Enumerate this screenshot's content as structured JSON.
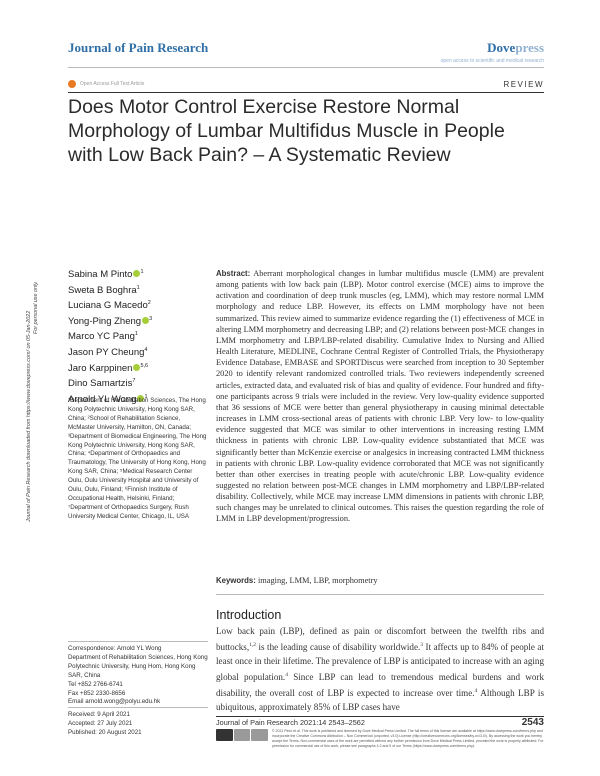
{
  "header": {
    "journal": "Journal of Pain Research",
    "brand_main": "Dove",
    "brand_light": "press",
    "brand_tagline": "open access to scientific and medical research",
    "open_access": "Open Access Full Text Article",
    "article_type": "REVIEW"
  },
  "title": "Does Motor Control Exercise Restore Normal Morphology of Lumbar Multifidus Muscle in People with Low Back Pain? – A Systematic Review",
  "side_text": {
    "line1": "Journal of Pain Research downloaded from https://www.dovepress.com/ on 05-Jan-2022",
    "line2": "For personal use only."
  },
  "authors": [
    {
      "name": "Sabina M Pinto",
      "sup": "1",
      "orcid": true
    },
    {
      "name": "Sweta B Boghra",
      "sup": "1",
      "orcid": false
    },
    {
      "name": "Luciana G Macedo",
      "sup": "2",
      "orcid": false
    },
    {
      "name": "Yong-Ping Zheng",
      "sup": "3",
      "orcid": true
    },
    {
      "name": "Marco YC Pang",
      "sup": "1",
      "orcid": false
    },
    {
      "name": "Jason PY Cheung",
      "sup": "4",
      "orcid": false
    },
    {
      "name": "Jaro Karppinen",
      "sup": "5,6",
      "orcid": true
    },
    {
      "name": "Dino Samartzis",
      "sup": "7",
      "orcid": false
    },
    {
      "name": "Arnold YL Wong",
      "sup": "1",
      "orcid": true
    }
  ],
  "affiliations": "¹Department of Rehabilitation Sciences, The Hong Kong Polytechnic University, Hong Kong SAR, China; ²School of Rehabilitation Science, McMaster University, Hamilton, ON, Canada; ³Department of Biomedical Engineering, The Hong Kong Polytechnic University, Hong Kong SAR, China; ⁴Department of Orthopaedics and Traumatology, The University of Hong Kong, Hong Kong SAR, China; ⁵Medical Research Center Oulu, Oulu University Hospital and University of Oulu, Oulu, Finland; ⁶Finnish Institute of Occupational Health, Helsinki, Finland; ⁷Department of Orthopaedics Surgery, Rush University Medical Center, Chicago, IL, USA",
  "correspondence": [
    "Correspondence: Arnold YL Wong",
    "Department of Rehabilitation Sciences, Hong Kong Polytechnic University, Hung Hom, Hong Kong SAR, China",
    "Tel +852 2766-6741",
    "Fax +852 2330-8656",
    "Email arnold.wong@polyu.edu.hk"
  ],
  "dates": [
    "Received: 9 April 2021",
    "Accepted: 27 July 2021",
    "Published: 20 August 2021"
  ],
  "abstract": {
    "label": "Abstract:",
    "text": "Aberrant morphological changes in lumbar multifidus muscle (LMM) are prevalent among patients with low back pain (LBP). Motor control exercise (MCE) aims to improve the activation and coordination of deep trunk muscles (eg, LMM), which may restore normal LMM morphology and reduce LBP. However, its effects on LMM morphology have not been summarized. This review aimed to summarize evidence regarding the (1) effectiveness of MCE in altering LMM morphometry and decreasing LBP; and (2) relations between post-MCE changes in LMM morphometry and LBP/LBP-related disability. Cumulative Index to Nursing and Allied Health Literature, MEDLINE, Cochrane Central Register of Controlled Trials, the Physiotherapy Evidence Database, EMBASE and SPORTDiscus were searched from inception to 30 September 2020 to identify relevant randomized controlled trials. Two reviewers independently screened articles, extracted data, and evaluated risk of bias and quality of evidence. Four hundred and fifty-one participants across 9 trials were included in the review. Very low-quality evidence supported that 36 sessions of MCE were better than general physiotherapy in causing minimal detectable increases in LMM cross-sectional areas of patients with chronic LBP. Very low- to low-quality evidence suggested that MCE was similar to other interventions in increasing resting LMM thickness in patients with chronic LBP. Low-quality evidence substantiated that MCE was significantly better than McKenzie exercise or analgesics in increasing contracted LMM thickness in patients with chronic LBP. Low-quality evidence corroborated that MCE was not significantly better than other exercises in treating people with acute/chronic LBP. Low-quality evidence suggested no relation between post-MCE changes in LMM morphometry and LBP/LBP-related disability. Collectively, while MCE may increase LMM dimensions in patients with chronic LBP, such changes may be unrelated to clinical outcomes. This raises the question regarding the role of LMM in LBP development/progression."
  },
  "keywords": {
    "label": "Keywords:",
    "text": "imaging, LMM, LBP, morphometry"
  },
  "introduction": {
    "heading": "Introduction",
    "p1": "Low back pain (LBP), defined as pain or discomfort between the twelfth ribs and buttocks,",
    "s1": "1,2",
    "p2": " is the leading cause of disability worldwide.",
    "s2": "3",
    "p3": " It affects up to 84% of people at least once in their lifetime. The prevalence of LBP is anticipated to increase with an aging global population.",
    "s3": "4",
    "p4": " Since LBP can lead to tremendous medical burdens and work disability, the overall cost of LBP is expected to increase over time.",
    "s4": "4",
    "p5": " Although LBP is ubiquitous, approximately 85% of LBP cases have"
  },
  "footer": {
    "citation": "Journal of Pain Research 2021:14 2543–2562",
    "page": "2543",
    "license": "© 2021 Pinto et al. This work is published and licensed by Dove Medical Press Limited. The full terms of this license are available at https://www.dovepress.com/terms.php and incorporate the Creative Commons Attribution – Non Commercial (unported, v3.0) License (http://creativecommons.org/licenses/by-nc/3.0/). By accessing the work you hereby accept the Terms. Non-commercial uses of the work are permitted without any further permission from Dove Medical Press Limited, provided the work is properly attributed. For permission for commercial use of this work, please see paragraphs 4.2 and 5 of our Terms (https://www.dovepress.com/terms.php)."
  }
}
